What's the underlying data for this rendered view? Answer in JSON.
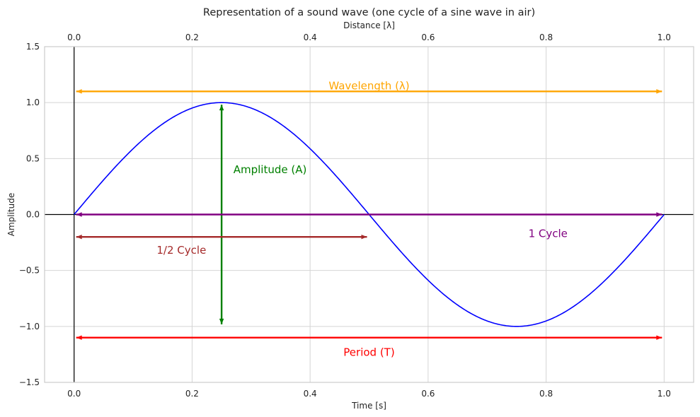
{
  "chart_data": {
    "type": "line",
    "title": "Representation of a sound wave (one cycle of a sine wave in air)",
    "xlabel": "Time [s]",
    "ylabel": "Amplitude",
    "top_xlabel": "Distance [λ]",
    "xlim": [
      -0.05,
      1.05
    ],
    "ylim": [
      -1.5,
      1.5
    ],
    "xticks": [
      0.0,
      0.2,
      0.4,
      0.6,
      0.8,
      1.0
    ],
    "xtick_labels": [
      "0.0",
      "0.2",
      "0.4",
      "0.6",
      "0.8",
      "1.0"
    ],
    "top_xtick_labels": [
      "0.0",
      "0.2",
      "0.4",
      "0.6",
      "0.8",
      "1.0"
    ],
    "yticks": [
      -1.5,
      -1.0,
      -0.5,
      0.0,
      0.5,
      1.0,
      1.5
    ],
    "ytick_labels": [
      "−1.5",
      "−1.0",
      "−0.5",
      "0.0",
      "0.5",
      "1.0",
      "1.5"
    ],
    "grid": true,
    "series": [
      {
        "function": "sin(2πx)",
        "x_range": [
          0,
          1
        ],
        "color": "#0000ff"
      }
    ],
    "reference_lines": [
      {
        "orientation": "horizontal",
        "y": 0,
        "color": "#000000"
      },
      {
        "orientation": "vertical",
        "x": 0,
        "color": "#000000"
      }
    ],
    "annotations": [
      {
        "label": "Wavelength (λ)",
        "color": "#ffa500",
        "from": [
          0,
          1.1
        ],
        "to": [
          1,
          1.1
        ],
        "text_pos": [
          0.5,
          1.15
        ]
      },
      {
        "label": "Amplitude (A)",
        "color": "#008000",
        "from": [
          0.25,
          -1
        ],
        "to": [
          0.25,
          1
        ],
        "text_pos": [
          0.27,
          0.4
        ]
      },
      {
        "label": "1 Cycle",
        "color": "#800080",
        "from": [
          0,
          0
        ],
        "to": [
          1,
          0
        ],
        "text_pos": [
          0.77,
          -0.17
        ]
      },
      {
        "label": "1/2 Cycle",
        "color": "#a52a2a",
        "from": [
          0,
          -0.2
        ],
        "to": [
          0.5,
          -0.2
        ],
        "text_pos": [
          0.14,
          -0.32
        ]
      },
      {
        "label": "Period (T)",
        "color": "#ff0000",
        "from": [
          0,
          -1.1
        ],
        "to": [
          1,
          -1.1
        ],
        "text_pos": [
          0.5,
          -1.23
        ]
      }
    ]
  }
}
